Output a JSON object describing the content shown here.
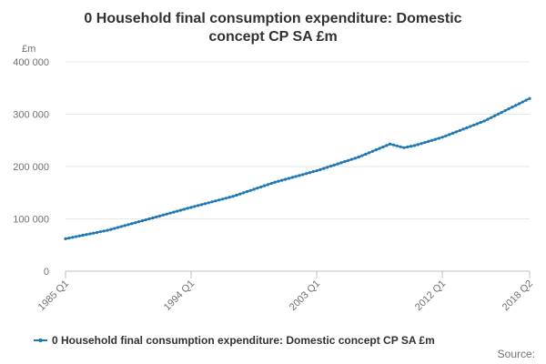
{
  "chart_data": {
    "type": "line",
    "title_lines": [
      "0 Household final consumption expenditure: Domestic",
      "concept CP SA £m"
    ],
    "y_unit": "£m",
    "ylim": [
      0,
      400000
    ],
    "y_ticks": [
      0,
      100000,
      200000,
      300000,
      400000
    ],
    "y_tick_labels": [
      "0",
      "100 000",
      "200 000",
      "300 000",
      "400 000"
    ],
    "x_tick_labels": [
      "1985 Q1",
      "1994 Q1",
      "2003 Q1",
      "2012 Q1",
      "2018 Q2"
    ],
    "x_tick_positions": [
      "1985 Q1",
      "1994 Q1",
      "2003 Q1",
      "2012 Q1",
      "2018 Q2"
    ],
    "x_start": "1985 Q1",
    "x_end": "2018 Q2",
    "grid": "horizontal",
    "legend_position": "bottom",
    "color": "#1f77b4",
    "series": [
      {
        "name": "0 Household final consumption expenditure: Domestic concept CP SA £m",
        "anchors": [
          [
            "1985 Q1",
            62000
          ],
          [
            "1988 Q1",
            78000
          ],
          [
            "1991 Q1",
            100000
          ],
          [
            "1994 Q1",
            122000
          ],
          [
            "1997 Q1",
            143000
          ],
          [
            "2000 Q1",
            170000
          ],
          [
            "2003 Q1",
            192000
          ],
          [
            "2006 Q1",
            218000
          ],
          [
            "2008 Q2",
            243000
          ],
          [
            "2009 Q2",
            236000
          ],
          [
            "2010 Q1",
            240000
          ],
          [
            "2012 Q1",
            256000
          ],
          [
            "2015 Q1",
            287000
          ],
          [
            "2018 Q2",
            330000
          ]
        ]
      }
    ]
  },
  "source_label": "Source:"
}
